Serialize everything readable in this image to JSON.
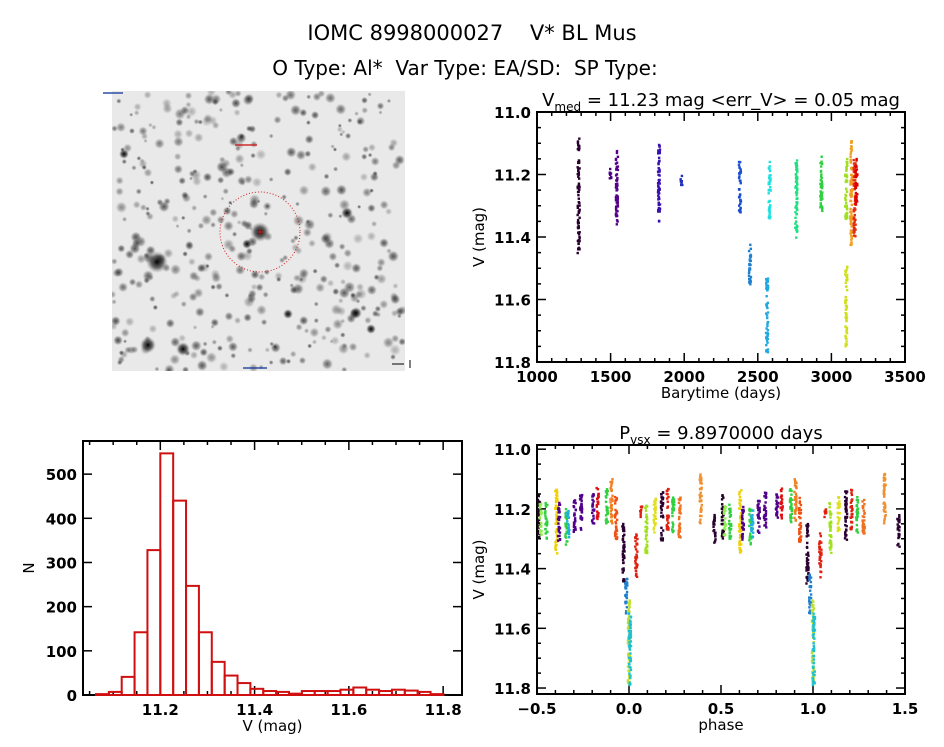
{
  "header": {
    "title": "IOMC 8998000027    V* BL Mus",
    "subtitle": "O Type: Al*  Var Type: EA/SD:  SP Type:"
  },
  "chart_data": [
    {
      "id": "light-curve",
      "type": "scatter",
      "title_main": "V",
      "title_sub": "med",
      "title_rest": " = 11.23 mag <err_V> = 0.05 mag",
      "xlabel": "Barytime (days)",
      "ylabel": "V (mag)",
      "xlim": [
        1000,
        3500
      ],
      "ylim": [
        11.8,
        11.0
      ],
      "y_inverted": true,
      "xticks": [
        "1000",
        "1500",
        "2000",
        "2500",
        "3000",
        "3500"
      ],
      "yticks": [
        "11.0",
        "11.2",
        "11.4",
        "11.6",
        "11.8"
      ],
      "groups_note_fields": [
        "barytime",
        "v_min",
        "v_max",
        "color"
      ],
      "groups": [
        [
          1283,
          11.14,
          11.46,
          "#2a0030"
        ],
        [
          1283,
          11.07,
          11.12,
          "#2a0030"
        ],
        [
          1498,
          11.17,
          11.21,
          "#4b0080"
        ],
        [
          1543,
          11.11,
          11.36,
          "#55008a"
        ],
        [
          1829,
          11.09,
          11.35,
          "#3a10b0"
        ],
        [
          1983,
          11.19,
          11.23,
          "#2030c0"
        ],
        [
          2379,
          11.15,
          11.32,
          "#1a50d0"
        ],
        [
          2447,
          11.42,
          11.56,
          "#2080d0"
        ],
        [
          2563,
          11.54,
          11.79,
          "#20a8e0"
        ],
        [
          2580,
          11.15,
          11.34,
          "#20e0e0"
        ],
        [
          2762,
          11.13,
          11.41,
          "#20e080"
        ],
        [
          2932,
          11.13,
          11.32,
          "#30d040"
        ],
        [
          3101,
          11.14,
          11.35,
          "#a0e020"
        ],
        [
          3101,
          11.5,
          11.77,
          "#d0e020"
        ],
        [
          3135,
          11.08,
          11.43,
          "#f0a020"
        ],
        [
          3158,
          11.14,
          11.4,
          "#e03010"
        ],
        [
          3170,
          11.14,
          11.3,
          "#e00000"
        ]
      ]
    },
    {
      "id": "histogram",
      "type": "bar",
      "xlabel": "V (mag)",
      "ylabel": "N",
      "xlim": [
        11.036,
        11.84
      ],
      "ylim": [
        0,
        575
      ],
      "xticks": [
        "11.2",
        "11.4",
        "11.6",
        "11.8"
      ],
      "yticks": [
        "0",
        "100",
        "200",
        "300",
        "400",
        "500"
      ],
      "bin_start": 11.0635,
      "bin_width": 0.0273,
      "color": "#d01010",
      "values": [
        2,
        7,
        41,
        142,
        328,
        547,
        440,
        247,
        142,
        75,
        44,
        27,
        14,
        9,
        7,
        3,
        9,
        9,
        9,
        12,
        17,
        12,
        9,
        12,
        10,
        7,
        2
      ]
    },
    {
      "id": "phase-curve",
      "type": "scatter",
      "title_main": "P",
      "title_sub": "vsx",
      "title_rest": " = 9.8970000 days",
      "xlabel": "phase",
      "ylabel": "V (mag)",
      "xlim": [
        -0.5,
        1.5
      ],
      "ylim": [
        11.8,
        11.0
      ],
      "y_inverted": true,
      "xticks": [
        "-0.5",
        "0.0",
        "0.5",
        "1.0",
        "1.5"
      ],
      "yticks": [
        "11.0",
        "11.2",
        "11.4",
        "11.6",
        "11.8"
      ],
      "groups_note_fields": [
        "phase",
        "v_min",
        "v_max",
        "color"
      ],
      "groups": [
        [
          -0.49,
          11.15,
          11.3,
          "#200020"
        ],
        [
          -0.48,
          11.18,
          11.29,
          "#90f050"
        ],
        [
          -0.45,
          11.18,
          11.3,
          "#30d040"
        ],
        [
          -0.395,
          11.13,
          11.35,
          "#f0d000"
        ],
        [
          -0.38,
          11.18,
          11.31,
          "#50008a"
        ],
        [
          -0.34,
          11.2,
          11.32,
          "#30d040"
        ],
        [
          -0.33,
          11.2,
          11.3,
          "#20b0e0"
        ],
        [
          -0.295,
          11.17,
          11.28,
          "#50008a"
        ],
        [
          -0.26,
          11.14,
          11.27,
          "#50008a"
        ],
        [
          -0.195,
          11.15,
          11.25,
          "#50008a"
        ],
        [
          -0.17,
          11.13,
          11.24,
          "#e01010"
        ],
        [
          -0.12,
          11.13,
          11.25,
          "#30d040"
        ],
        [
          -0.095,
          11.1,
          11.25,
          "#f08020"
        ],
        [
          -0.07,
          11.16,
          11.31,
          "#f05010"
        ],
        [
          -0.03,
          11.25,
          11.45,
          "#2a0030"
        ],
        [
          -0.015,
          11.42,
          11.55,
          "#2080d0"
        ],
        [
          0.0,
          11.5,
          11.79,
          "#c0e030"
        ],
        [
          0.005,
          11.55,
          11.79,
          "#20c0d0"
        ],
        [
          0.04,
          11.28,
          11.43,
          "#e02010"
        ],
        [
          0.067,
          11.19,
          11.23,
          "#e02010"
        ],
        [
          0.094,
          11.18,
          11.35,
          "#a0e020"
        ],
        [
          0.14,
          11.16,
          11.28,
          "#e0e020"
        ],
        [
          0.18,
          11.14,
          11.31,
          "#2a0030"
        ],
        [
          0.21,
          11.13,
          11.27,
          "#e02010"
        ],
        [
          0.24,
          11.16,
          11.28,
          "#30d040"
        ],
        [
          0.275,
          11.16,
          11.3,
          "#f07020"
        ],
        [
          0.39,
          11.08,
          11.25,
          "#f09030"
        ],
        [
          0.465,
          11.22,
          11.33,
          "#2a0030"
        ]
      ]
    }
  ],
  "image_panel": {
    "circle_color": "#d02020"
  }
}
